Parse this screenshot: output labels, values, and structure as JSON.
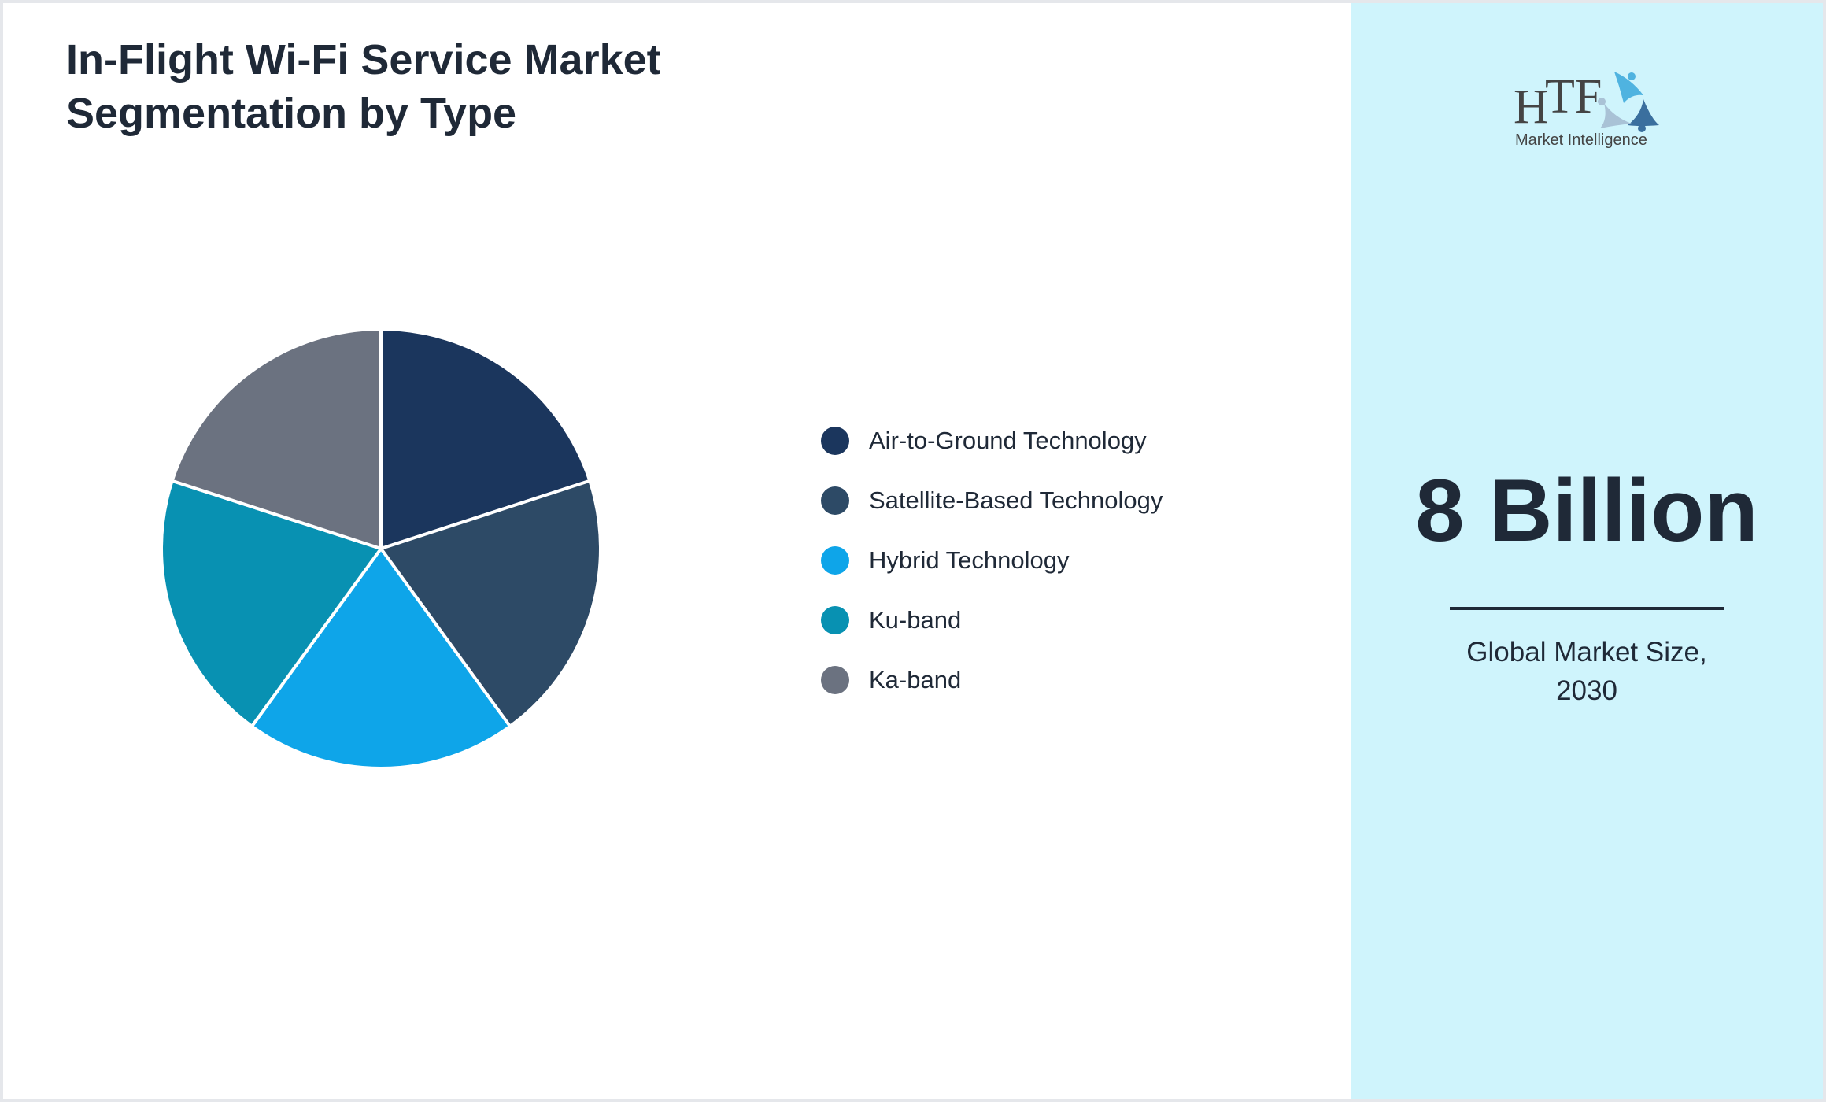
{
  "title": "In-Flight Wi-Fi Service Market Segmentation by Type",
  "chart_data": {
    "type": "pie",
    "title": "In-Flight Wi-Fi Service Market Segmentation by Type",
    "categories": [
      "Air-to-Ground Technology",
      "Satellite-Based Technology",
      "Hybrid Technology",
      "Ku-band",
      "Ka-band"
    ],
    "values": [
      20,
      20,
      20,
      20,
      20
    ],
    "colors": [
      "#1b365d",
      "#2d4a66",
      "#0ea5e9",
      "#0891b2",
      "#6b7280"
    ],
    "legend_placement": "right"
  },
  "panel": {
    "logo_text": "HTF Market Intelligence",
    "logo_main": "HTF",
    "logo_sub": "Market Intelligence",
    "value": "8 Billion",
    "label_line1": "Global Market Size,",
    "label_line2": "2030",
    "background": "#cff4fc"
  }
}
